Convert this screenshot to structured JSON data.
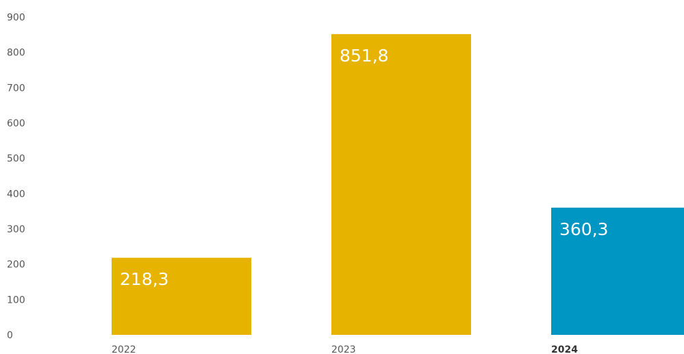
{
  "chart_data": {
    "type": "bar",
    "title": "",
    "xlabel": "",
    "ylabel": "",
    "categories": [
      "2022",
      "2023",
      "2024"
    ],
    "values": [
      218.3,
      851.8,
      360.3
    ],
    "value_labels": [
      "218,3",
      "851,8",
      "360,3"
    ],
    "emphasized_category": "2024",
    "bar_colors": [
      "#e6b400",
      "#e6b400",
      "#0096c3"
    ],
    "ylim": [
      0,
      900
    ],
    "yticks": [
      0,
      100,
      200,
      300,
      400,
      500,
      600,
      700,
      800,
      900
    ],
    "grid": false,
    "legend": "none"
  }
}
